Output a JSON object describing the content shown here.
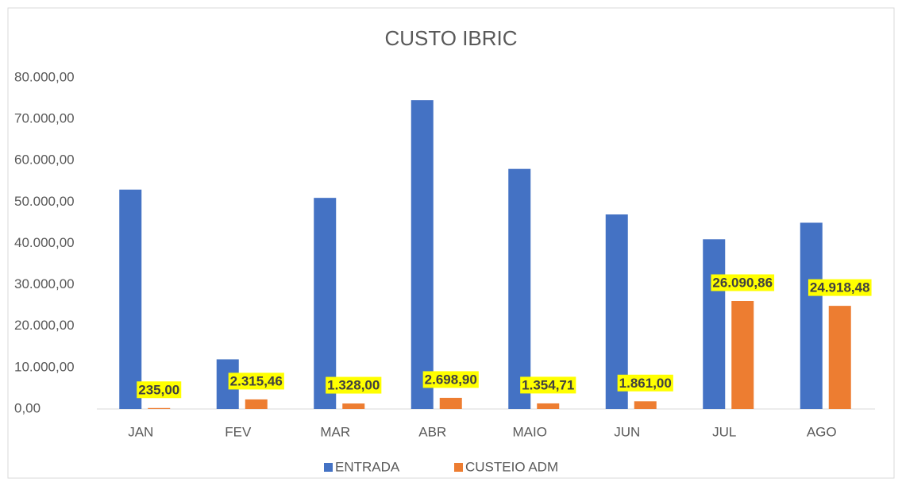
{
  "chart_data": {
    "type": "bar",
    "title": "CUSTO IBRIC",
    "categories": [
      "JAN",
      "FEV",
      "MAR",
      "ABR",
      "MAIO",
      "JUN",
      "JUL",
      "AGO"
    ],
    "series": [
      {
        "name": "ENTRADA",
        "color": "#4472c4",
        "values": [
          53000,
          12000,
          51000,
          74600,
          58000,
          47000,
          41000,
          45000
        ]
      },
      {
        "name": "CUSTEIO ADM",
        "color": "#ed7d31",
        "values": [
          235,
          2315.46,
          1328,
          2698.9,
          1354.71,
          1861,
          26090.86,
          24918.48
        ],
        "value_labels": [
          "235,00",
          "2.315,46",
          "1.328,00",
          "2.698,90",
          "1.354,71",
          "1.861,00",
          "26.090,86",
          "24.918,48"
        ]
      }
    ],
    "ylim": [
      0,
      80000
    ],
    "yticks": [
      {
        "value": 0,
        "label": "0,00"
      },
      {
        "value": 10000,
        "label": "10.000,00"
      },
      {
        "value": 20000,
        "label": "20.000,00"
      },
      {
        "value": 30000,
        "label": "30.000,00"
      },
      {
        "value": 40000,
        "label": "40.000,00"
      },
      {
        "value": 50000,
        "label": "50.000,00"
      },
      {
        "value": 60000,
        "label": "60.000,00"
      },
      {
        "value": 70000,
        "label": "70.000,00"
      },
      {
        "value": 80000,
        "label": "80.000,00"
      }
    ],
    "grid": false,
    "legend": "bottom"
  }
}
